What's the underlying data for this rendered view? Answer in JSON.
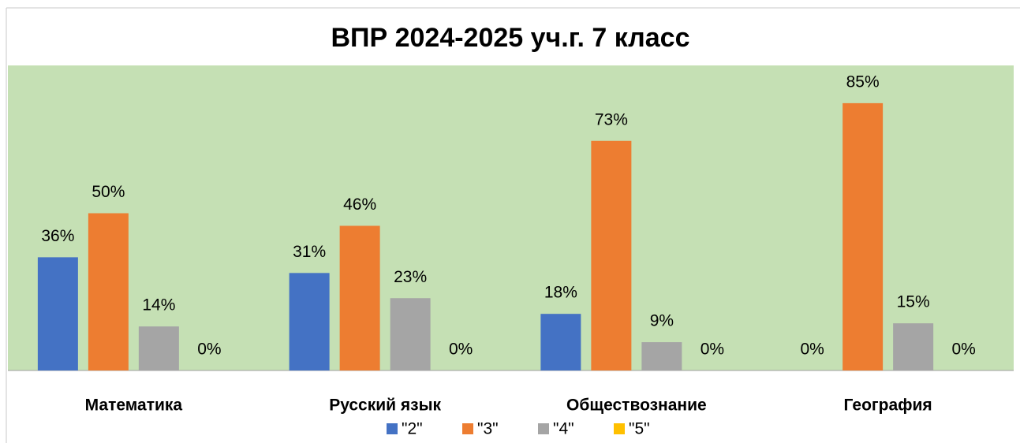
{
  "chart_data": {
    "type": "bar",
    "title": "ВПР 2024-2025 уч.г. 7 класс",
    "categories": [
      "Математика",
      "Русский язык",
      "Обществознание",
      "География"
    ],
    "series": [
      {
        "name": "\"2\"",
        "color": "#4472c4",
        "values": [
          36,
          31,
          18,
          0
        ],
        "value_labels": [
          "36%",
          "31%",
          "18%",
          "0%"
        ]
      },
      {
        "name": "\"3\"",
        "color": "#ed7d31",
        "values": [
          50,
          46,
          73,
          85
        ],
        "value_labels": [
          "50%",
          "46%",
          "73%",
          "85%"
        ]
      },
      {
        "name": "\"4\"",
        "color": "#a5a5a5",
        "values": [
          14,
          23,
          9,
          15
        ],
        "value_labels": [
          "14%",
          "23%",
          "9%",
          "15%"
        ]
      },
      {
        "name": "\"5\"",
        "color": "#ffc000",
        "values": [
          0,
          0,
          0,
          0
        ],
        "value_labels": [
          "0%",
          "0%",
          "0%",
          "0%"
        ]
      }
    ],
    "ylim": [
      0,
      97
    ],
    "plot_background": "#c5e0b4",
    "legend": "bottom"
  }
}
